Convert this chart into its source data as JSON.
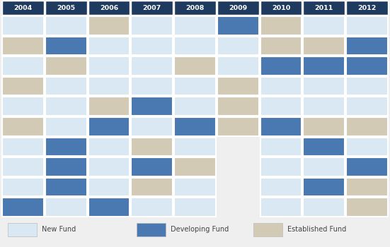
{
  "years": [
    "2004",
    "2005",
    "2006",
    "2007",
    "2008",
    "2009",
    "2010",
    "2011",
    "2012"
  ],
  "header_color": "#1e3a5f",
  "header_text_color": "#ffffff",
  "colors": {
    "N": "#d9e8f2",
    "D": "#4a78b0",
    "E": "#d3cab5",
    "X": "#f0f0f0"
  },
  "legend_labels": [
    "New Fund",
    "Developing Fund",
    "Established Fund"
  ],
  "legend_colors": [
    "#d9e8f2",
    "#4a78b0",
    "#d3cab5"
  ],
  "grid": [
    [
      "N",
      "N",
      "E",
      "N",
      "N",
      "D",
      "E",
      "N",
      "N"
    ],
    [
      "E",
      "D",
      "N",
      "N",
      "N",
      "N",
      "E",
      "E",
      "D"
    ],
    [
      "N",
      "E",
      "N",
      "N",
      "E",
      "N",
      "D",
      "D",
      "D"
    ],
    [
      "E",
      "N",
      "N",
      "N",
      "N",
      "E",
      "N",
      "N",
      "N"
    ],
    [
      "N",
      "N",
      "E",
      "D",
      "N",
      "E",
      "N",
      "N",
      "N"
    ],
    [
      "E",
      "N",
      "D",
      "N",
      "D",
      "E",
      "D",
      "E",
      "E"
    ],
    [
      "N",
      "D",
      "N",
      "E",
      "N",
      "X",
      "N",
      "D",
      "N"
    ],
    [
      "N",
      "D",
      "N",
      "D",
      "E",
      "X",
      "N",
      "N",
      "D"
    ],
    [
      "N",
      "D",
      "N",
      "E",
      "N",
      "X",
      "N",
      "D",
      "E"
    ],
    [
      "D",
      "N",
      "D",
      "N",
      "N",
      "X",
      "N",
      "N",
      "E"
    ]
  ],
  "background_color": "#efefef",
  "fig_width": 5.51,
  "fig_height": 3.5,
  "dpi": 100
}
